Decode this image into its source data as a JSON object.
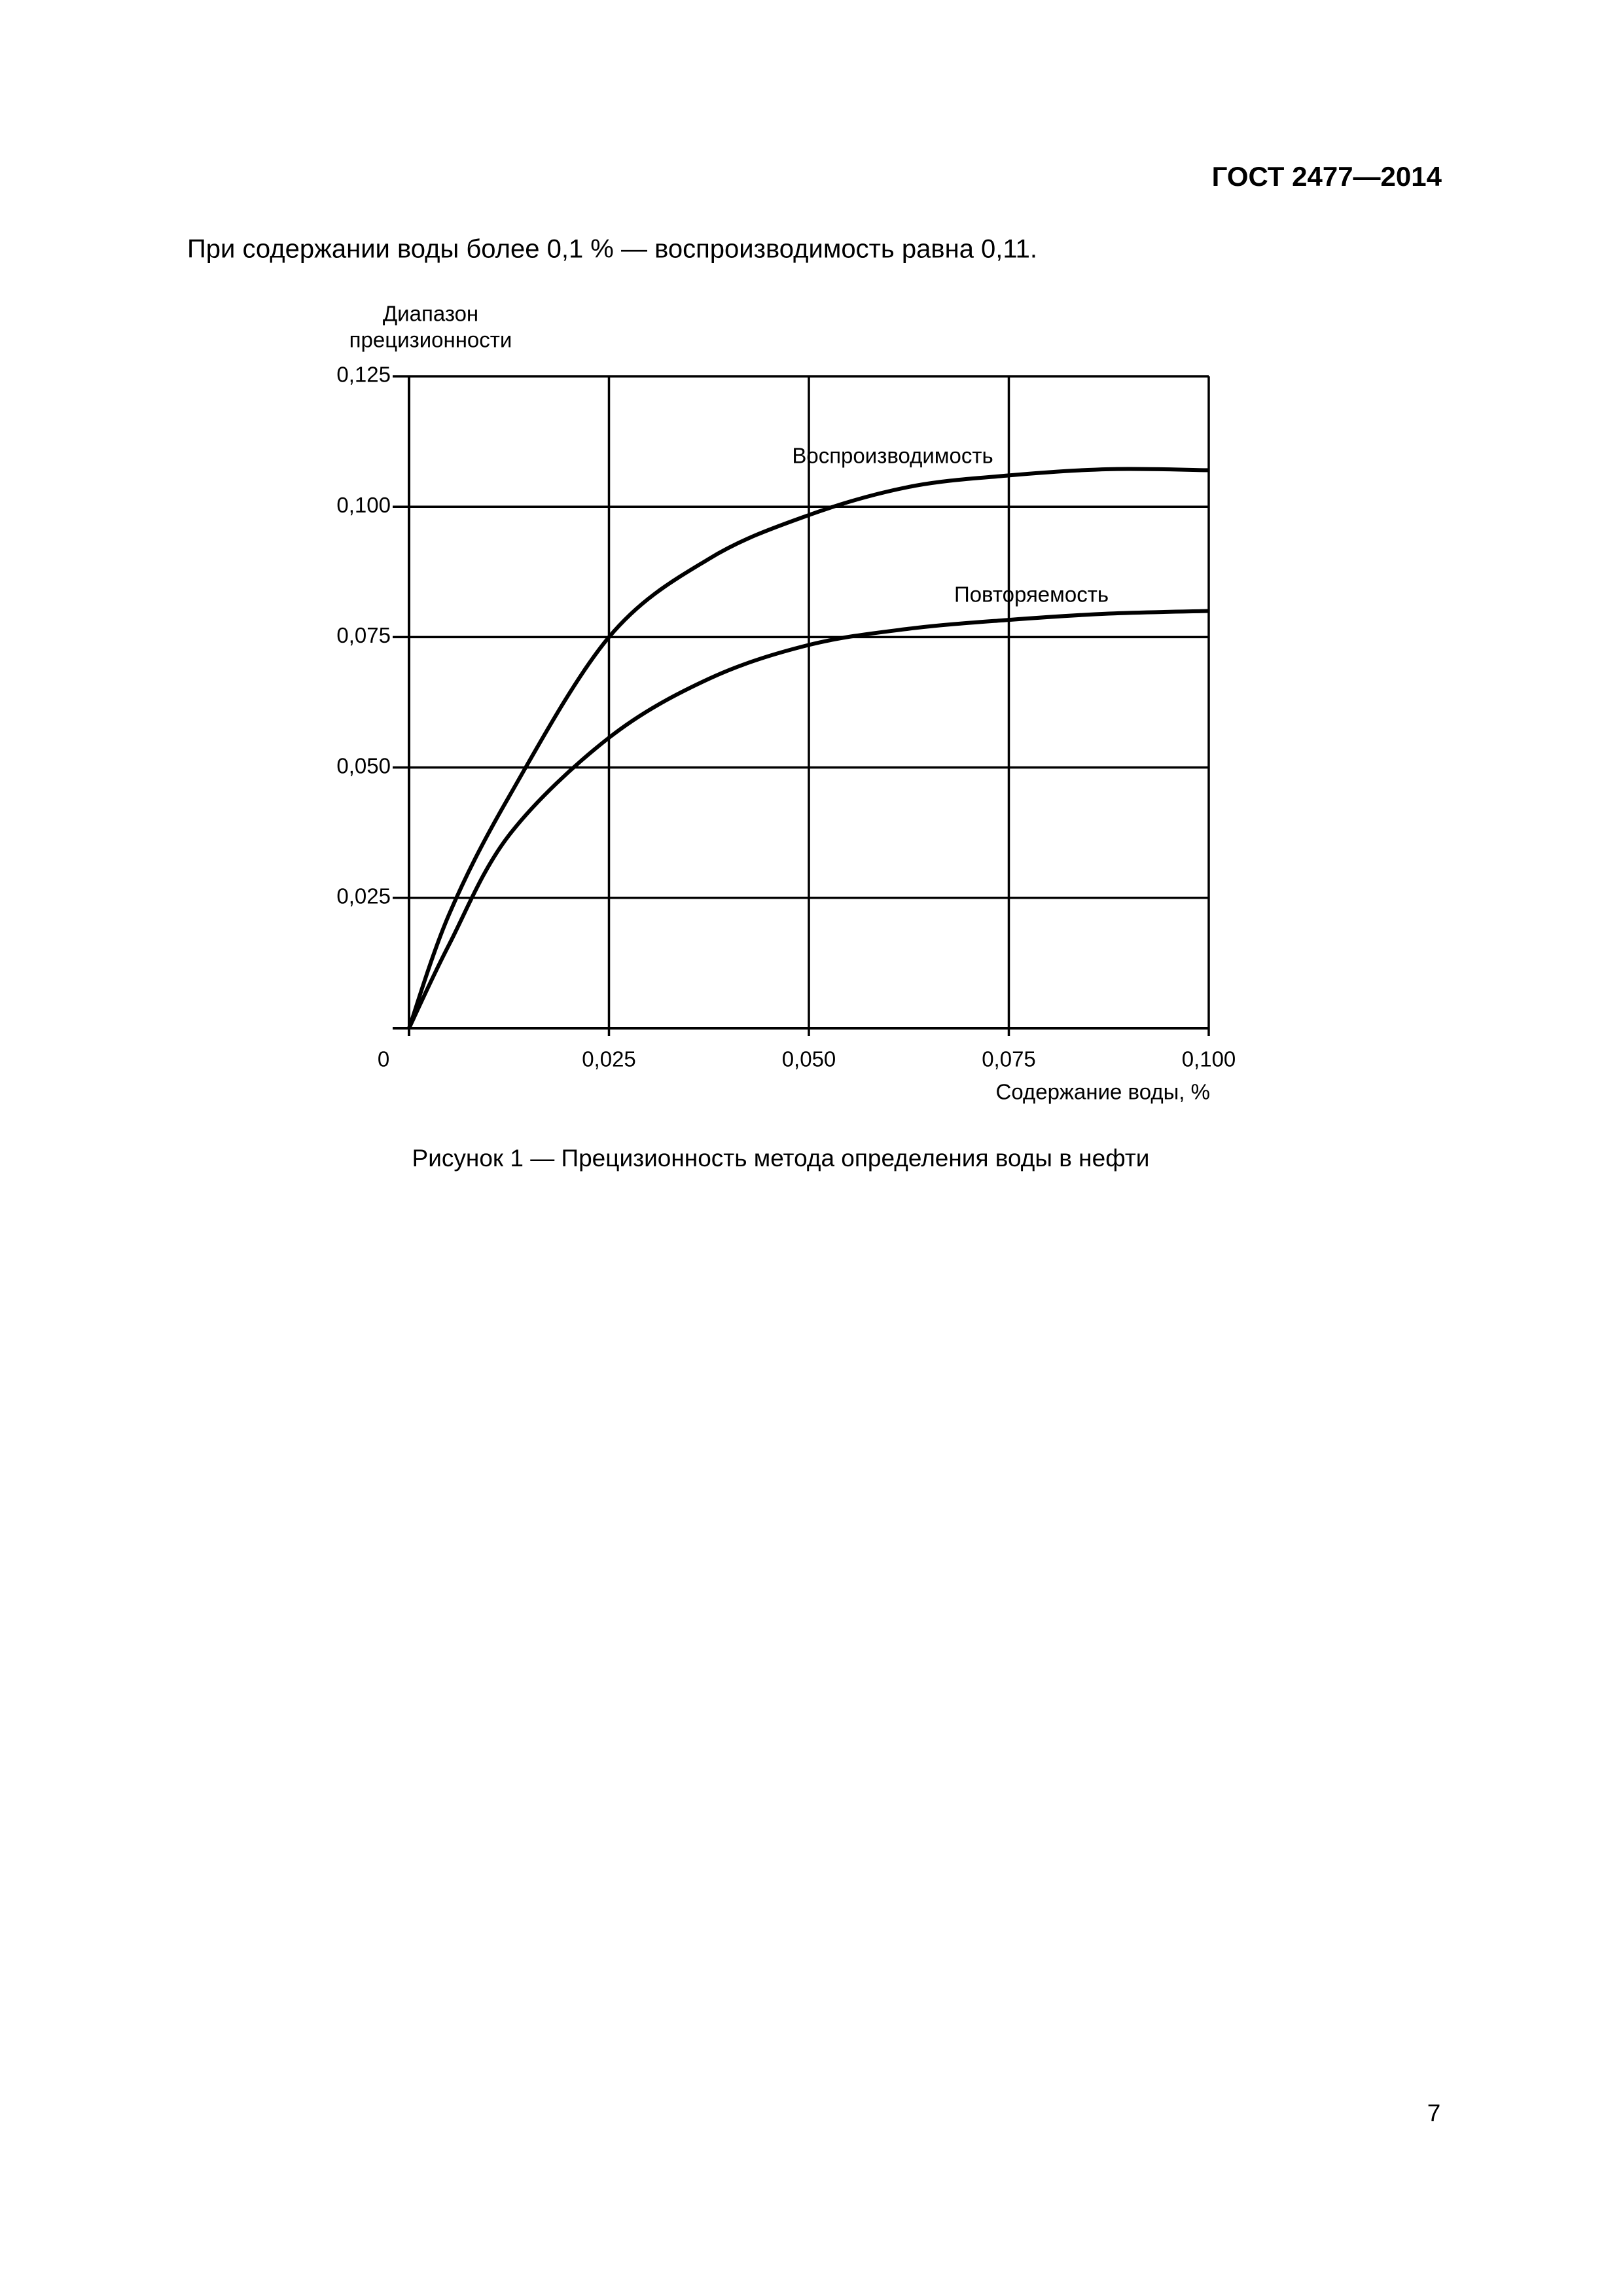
{
  "header": {
    "title": "ГОСТ 2477—2014"
  },
  "paragraph": "При содержании воды более 0,1 % — воспроизводимость равна 0,11.",
  "chart_data": {
    "type": "line",
    "ylabel": [
      "Диапазон",
      "прецизионности"
    ],
    "xlabel": "Содержание воды, %",
    "x": [
      0,
      0.005,
      0.0125,
      0.025,
      0.0375,
      0.05,
      0.0625,
      0.075,
      0.0875,
      0.1
    ],
    "series": [
      {
        "name": "Воспроизводимость",
        "color": "#000000",
        "values": [
          0,
          0.0218,
          0.0444,
          0.075,
          0.09,
          0.0984,
          0.1038,
          0.106,
          0.1072,
          0.107
        ]
      },
      {
        "name": "Повторяемость",
        "color": "#000000",
        "values": [
          0,
          0.016,
          0.037,
          0.0557,
          0.067,
          0.0735,
          0.0766,
          0.0783,
          0.0795,
          0.08
        ]
      }
    ],
    "xlim": [
      0,
      0.1
    ],
    "xticks": [
      0,
      {
        "value": 0.025,
        "label": "0,025"
      },
      {
        "value": 0.05,
        "label": "0,050"
      },
      {
        "value": 0.075,
        "label": "0,075"
      },
      {
        "value": 0.1,
        "label": "0,100"
      }
    ],
    "ylim": [
      0,
      0.125
    ],
    "yticks": [
      {
        "value": 0.025,
        "label": "0,025"
      },
      {
        "value": 0.05,
        "label": "0,050"
      },
      {
        "value": 0.075,
        "label": "0,075"
      },
      {
        "value": 0.1,
        "label": "0,100"
      },
      {
        "value": 0.125,
        "label": "0,125"
      }
    ],
    "grid": true
  },
  "caption": "Рисунок  1 — Прецизионность метода определения воды в нефти",
  "page_number": "7"
}
